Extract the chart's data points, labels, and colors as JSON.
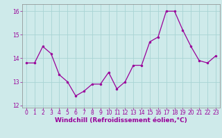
{
  "x": [
    0,
    1,
    2,
    3,
    4,
    5,
    6,
    7,
    8,
    9,
    10,
    11,
    12,
    13,
    14,
    15,
    16,
    17,
    18,
    19,
    20,
    21,
    22,
    23
  ],
  "y": [
    13.8,
    13.8,
    14.5,
    14.2,
    13.3,
    13.0,
    12.4,
    12.6,
    12.9,
    12.9,
    13.4,
    12.7,
    13.0,
    13.7,
    13.7,
    14.7,
    14.9,
    16.0,
    16.0,
    15.2,
    14.5,
    13.9,
    13.8,
    14.1
  ],
  "line_color": "#990099",
  "marker": "o",
  "marker_size": 2.0,
  "bg_color": "#ceeaea",
  "grid_color": "#a8d4d4",
  "xlabel": "Windchill (Refroidissement éolien,°C)",
  "xlim_min": -0.5,
  "xlim_max": 23.5,
  "ylim_min": 11.9,
  "ylim_max": 16.3,
  "yticks": [
    12,
    13,
    14,
    15,
    16
  ],
  "xticks": [
    0,
    1,
    2,
    3,
    4,
    5,
    6,
    7,
    8,
    9,
    10,
    11,
    12,
    13,
    14,
    15,
    16,
    17,
    18,
    19,
    20,
    21,
    22,
    23
  ],
  "tick_color": "#990099",
  "tick_fontsize": 5.5,
  "xlabel_fontsize": 6.5,
  "spine_color": "#888888"
}
